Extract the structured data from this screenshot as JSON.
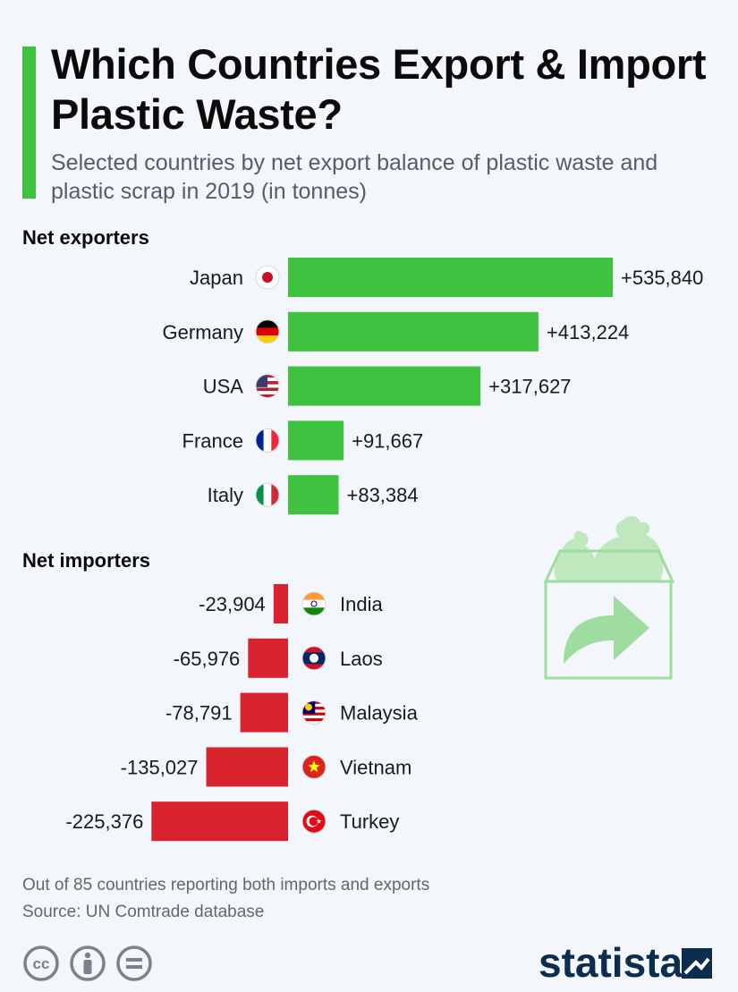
{
  "header": {
    "title": "Which Countries Export & Import Plastic Waste?",
    "subtitle": "Selected countries by net export balance of plastic waste and plastic scrap in 2019 (in tonnes)"
  },
  "sections": {
    "exporters_label": "Net exporters",
    "importers_label": "Net importers"
  },
  "chart_data": {
    "type": "bar",
    "orientation": "horizontal",
    "unit": "tonnes",
    "colors": {
      "exporters": "#3fc23f",
      "importers": "#d9232e"
    },
    "groups": [
      {
        "name": "Net exporters",
        "categories": [
          "Japan",
          "Germany",
          "USA",
          "France",
          "Italy"
        ],
        "values": [
          535840,
          413224,
          317627,
          91667,
          83384
        ],
        "labels": [
          "+535,840",
          "+413,224",
          "+317,627",
          "+91,667",
          "+83,384"
        ],
        "flags": [
          "japan-flag-icon",
          "germany-flag-icon",
          "usa-flag-icon",
          "france-flag-icon",
          "italy-flag-icon"
        ]
      },
      {
        "name": "Net importers",
        "categories": [
          "India",
          "Laos",
          "Malaysia",
          "Vietnam",
          "Turkey"
        ],
        "values": [
          -23904,
          -65976,
          -78791,
          -135027,
          -225376
        ],
        "labels": [
          "-23,904",
          "-65,976",
          "-78,791",
          "-135,027",
          "-225,376"
        ],
        "flags": [
          "india-flag-icon",
          "laos-flag-icon",
          "malaysia-flag-icon",
          "vietnam-flag-icon",
          "turkey-flag-icon"
        ]
      }
    ]
  },
  "footer": {
    "note": "Out of 85 countries reporting both imports and exports",
    "source": "Source: UN Comtrade database",
    "brand": "statista"
  },
  "icons": [
    "plastic-bags-box-icon",
    "cc-icon",
    "attribution-icon",
    "no-derivatives-icon",
    "statista-logo-icon"
  ]
}
